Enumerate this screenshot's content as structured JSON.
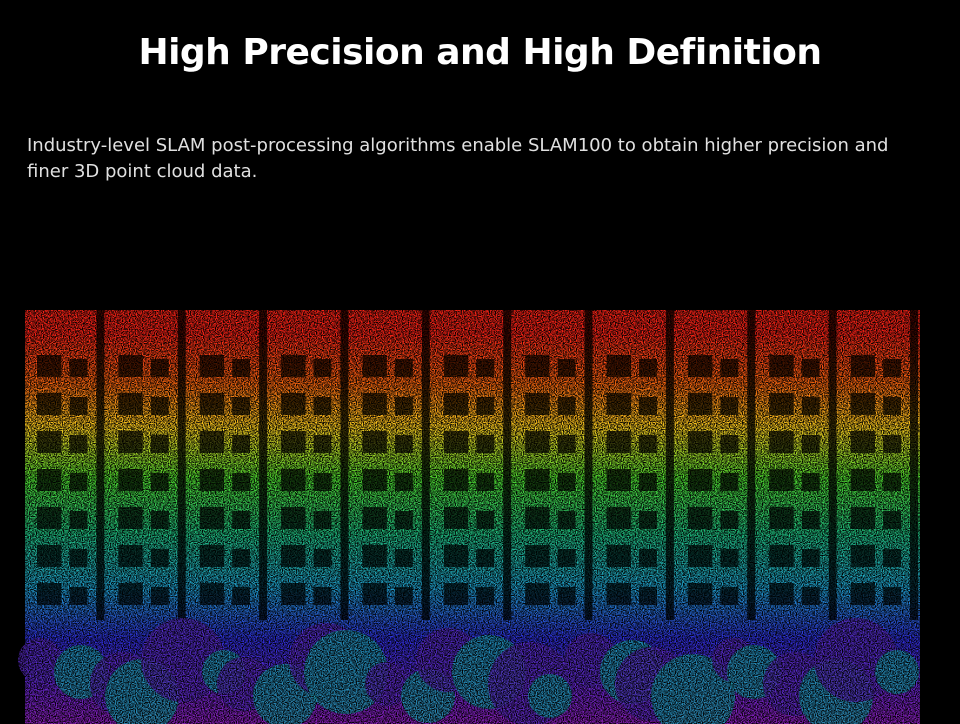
{
  "header": {
    "title": "High Precision and High Definition"
  },
  "description": "Industry-level SLAM post-processing algorithms enable SLAM100 to obtain higher precision and finer 3D point cloud data."
}
